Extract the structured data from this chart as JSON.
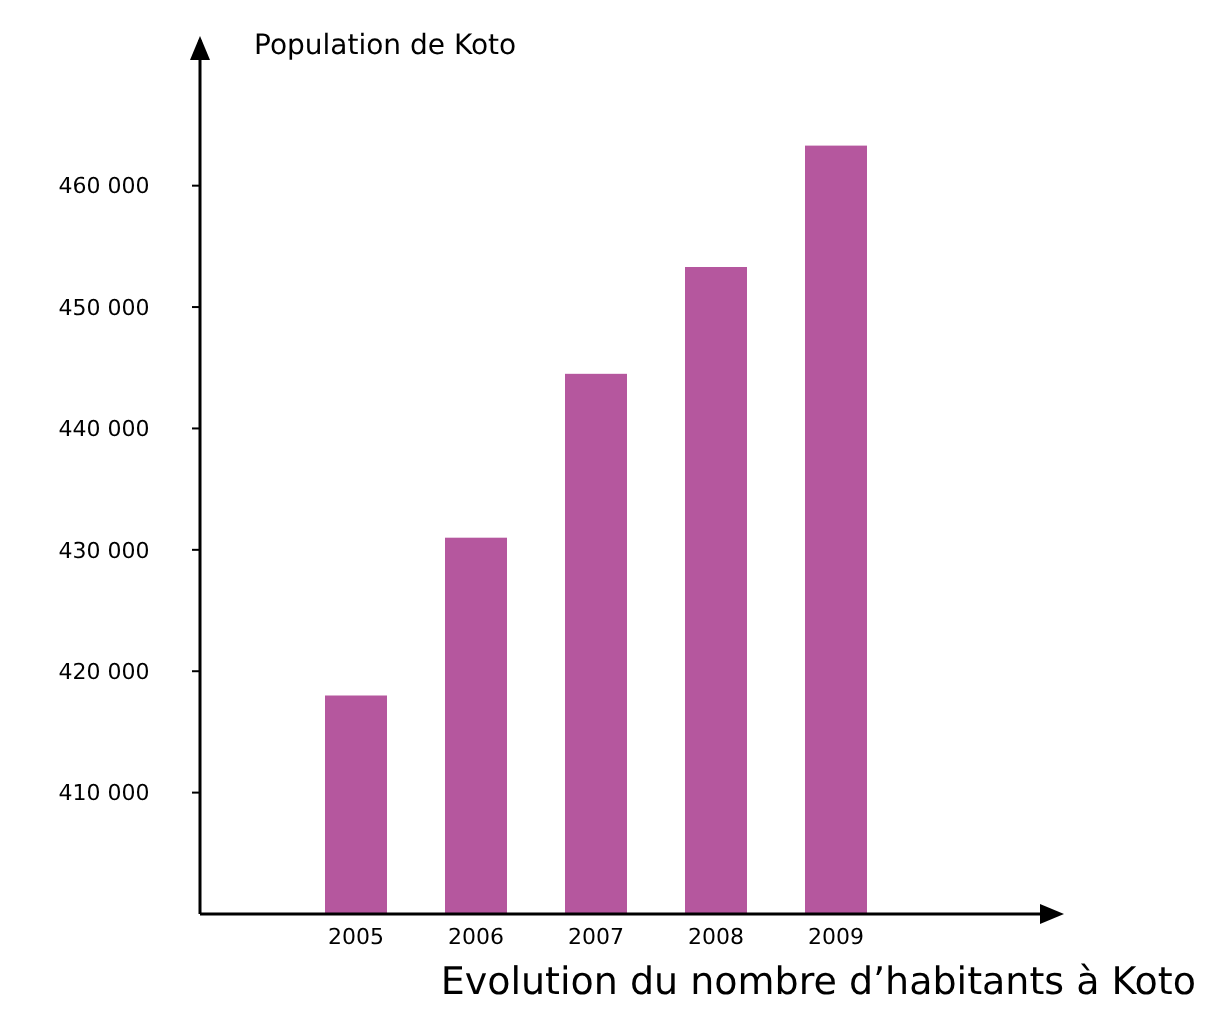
{
  "chart_data": {
    "type": "bar",
    "ylabel": "Population de Koto",
    "xlabel": "Evolution du nombre d’habitants à Koto",
    "categories": [
      "2005",
      "2006",
      "2007",
      "2008",
      "2009"
    ],
    "values": [
      418000,
      431000,
      444500,
      453300,
      463300
    ],
    "color": "#b5579e",
    "ylim": [
      400000,
      472000
    ],
    "yticks": [
      {
        "value": 410000,
        "label": "410 000"
      },
      {
        "value": 420000,
        "label": "420 000"
      },
      {
        "value": 430000,
        "label": "430 000"
      },
      {
        "value": 440000,
        "label": "440 000"
      },
      {
        "value": 450000,
        "label": "450 000"
      },
      {
        "value": 460000,
        "label": "460 000"
      }
    ],
    "grid": false
  }
}
